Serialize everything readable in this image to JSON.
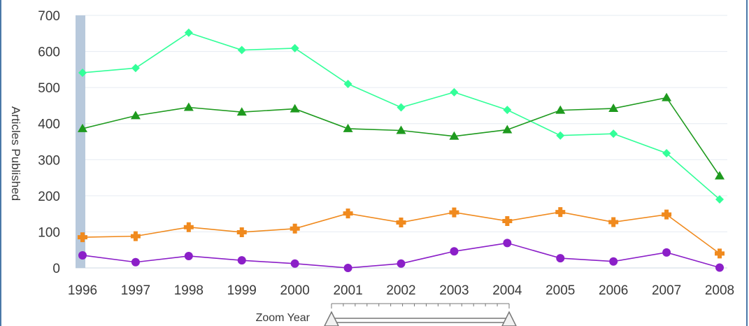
{
  "chart_data": {
    "type": "line",
    "title": "",
    "xlabel": "",
    "ylabel": "Articles Published",
    "ylim": [
      0,
      700
    ],
    "yticks": [
      0,
      100,
      200,
      300,
      400,
      500,
      600,
      700
    ],
    "categories": [
      "1996",
      "1997",
      "1998",
      "1999",
      "2000",
      "2001",
      "2002",
      "2003",
      "2004",
      "2005",
      "2006",
      "2007",
      "2008"
    ],
    "grid": true,
    "legend": "none",
    "series": [
      {
        "color": "#33ff99",
        "marker": "diamond",
        "values": [
          541,
          554,
          652,
          604,
          609,
          510,
          445,
          487,
          438,
          367,
          372,
          318,
          190
        ]
      },
      {
        "color": "#1e9a1e",
        "marker": "triangle",
        "values": [
          386,
          422,
          445,
          432,
          441,
          386,
          381,
          365,
          383,
          437,
          442,
          472,
          255
        ]
      },
      {
        "color": "#f08a1e",
        "marker": "plus",
        "values": [
          85,
          88,
          113,
          99,
          109,
          151,
          126,
          154,
          130,
          155,
          127,
          148,
          40
        ]
      },
      {
        "color": "#8b1fc8",
        "marker": "circle",
        "values": [
          35,
          16,
          33,
          21,
          12,
          0,
          12,
          46,
          69,
          27,
          18,
          43,
          1
        ]
      }
    ]
  },
  "zoom": {
    "label": "Zoom Year"
  }
}
